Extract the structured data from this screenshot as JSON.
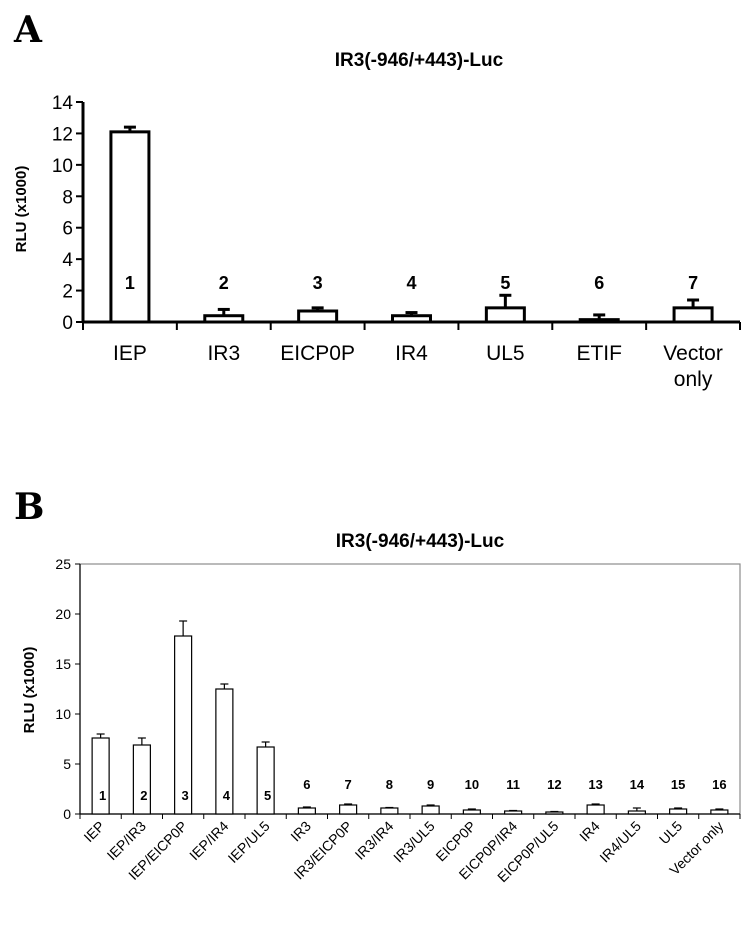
{
  "chart_data": [
    {
      "panel": "A",
      "type": "bar",
      "title": "IR3(-946/+443)-Luc",
      "ylabel": "RLU (x1000)",
      "xlabel": "",
      "ylim": [
        0,
        14
      ],
      "yticks": [
        0,
        2,
        4,
        6,
        8,
        10,
        12,
        14
      ],
      "grid": false,
      "categories": [
        "IEP",
        "IR3",
        "EICP0P",
        "IR4",
        "UL5",
        "ETIF",
        "Vector only"
      ],
      "bar_numbers": [
        "1",
        "2",
        "3",
        "4",
        "5",
        "6",
        "7"
      ],
      "values": [
        12.1,
        0.4,
        0.7,
        0.4,
        0.9,
        0.15,
        0.9
      ],
      "errors": [
        0.3,
        0.4,
        0.2,
        0.2,
        0.8,
        0.3,
        0.5
      ]
    },
    {
      "panel": "B",
      "type": "bar",
      "title": "IR3(-946/+443)-Luc",
      "ylabel": "RLU (x1000)",
      "xlabel": "",
      "ylim": [
        0,
        25
      ],
      "yticks": [
        0,
        5,
        10,
        15,
        20,
        25
      ],
      "grid": false,
      "categories": [
        "IEP",
        "IEP/IR3",
        "IEP/EICP0P",
        "IEP/IR4",
        "IEP/UL5",
        "IR3",
        "IR3/EICP0P",
        "IR3/IR4",
        "IR3/UL5",
        "EICP0P",
        "EICP0P/IR4",
        "EICP0P/UL5",
        "IR4",
        "IR4/UL5",
        "UL5",
        "Vector only"
      ],
      "bar_numbers": [
        "1",
        "2",
        "3",
        "4",
        "5",
        "6",
        "7",
        "8",
        "9",
        "10",
        "11",
        "12",
        "13",
        "14",
        "15",
        "16"
      ],
      "values": [
        7.6,
        6.9,
        17.8,
        12.5,
        6.7,
        0.6,
        0.9,
        0.6,
        0.8,
        0.4,
        0.3,
        0.2,
        0.9,
        0.3,
        0.5,
        0.4
      ],
      "errors": [
        0.4,
        0.7,
        1.5,
        0.5,
        0.5,
        0.1,
        0.1,
        0.05,
        0.1,
        0.1,
        0.05,
        0.05,
        0.1,
        0.3,
        0.1,
        0.1
      ]
    }
  ]
}
